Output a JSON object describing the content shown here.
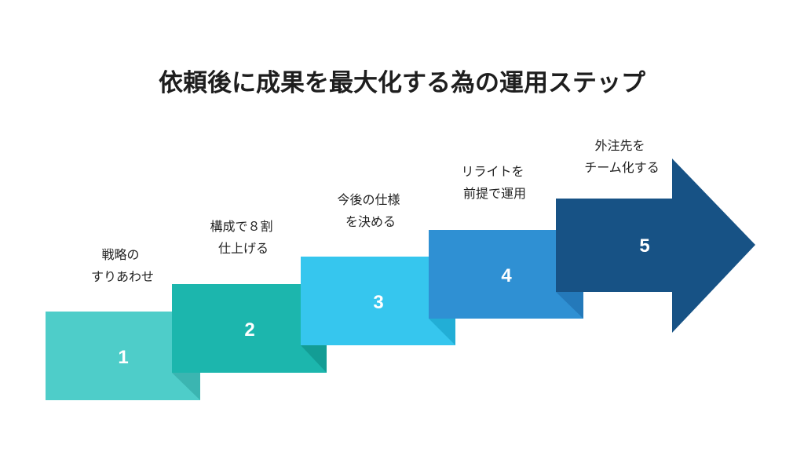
{
  "title": "依頼後に成果を最大化する為の運用ステップ",
  "steps": [
    {
      "number": "1",
      "label_lines": [
        "戦略の",
        "すりあわせ"
      ],
      "color": "#4ECDC9",
      "shade": "#3BB5B1"
    },
    {
      "number": "2",
      "label_lines": [
        "構成で８割",
        "仕上げる"
      ],
      "color": "#1CB6AD",
      "shade": "#139D95"
    },
    {
      "number": "3",
      "label_lines": [
        "今後の仕様",
        "を決める"
      ],
      "color": "#36C6EE",
      "shade": "#22AED6"
    },
    {
      "number": "4",
      "label_lines": [
        "リライトを",
        "前提で運用"
      ],
      "color": "#2F90D3",
      "shade": "#2479BA"
    },
    {
      "number": "5",
      "label_lines": [
        "外注先を",
        "チーム化する"
      ],
      "color": "#175285",
      "shade": "#0F3F6A"
    }
  ]
}
